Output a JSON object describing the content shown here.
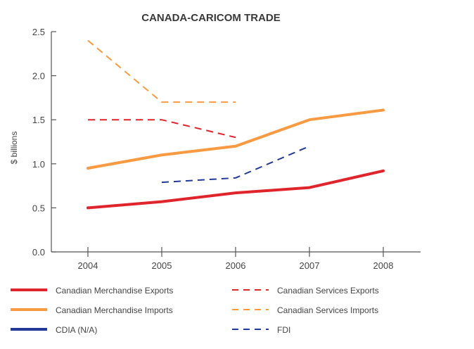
{
  "chart_data": {
    "type": "line",
    "title": "CANADA-CARICOM TRADE",
    "xlabel": "",
    "ylabel": "$ billions",
    "x": [
      "2004",
      "2005",
      "2006",
      "2007",
      "2008"
    ],
    "yticks": [
      "0.0",
      "0.5",
      "1.0",
      "1.5",
      "2.0",
      "2.5"
    ],
    "ylim": [
      0,
      2.5
    ],
    "grid": false,
    "legend_position": "bottom",
    "series": [
      {
        "name": "Canadian Merchandise Exports",
        "color": "#e0242b",
        "style": "solid",
        "values": [
          0.5,
          0.57,
          0.67,
          0.73,
          0.92
        ]
      },
      {
        "name": "Canadian Merchandise Imports",
        "color": "#f79a42",
        "style": "solid",
        "values": [
          0.95,
          1.1,
          1.2,
          1.5,
          1.61
        ]
      },
      {
        "name": "CDIA (N/A)",
        "color": "#23399a",
        "style": "solid",
        "values": [
          null,
          null,
          null,
          null,
          null
        ]
      },
      {
        "name": "Canadian Services Exports",
        "color": "#e0242b",
        "style": "dashed",
        "values": [
          1.5,
          1.5,
          1.3,
          null,
          null
        ]
      },
      {
        "name": "Canadian Services Imports",
        "color": "#f79a42",
        "style": "dashed",
        "values": [
          2.4,
          1.7,
          1.7,
          null,
          null
        ]
      },
      {
        "name": "FDI",
        "color": "#23399a",
        "style": "dashed",
        "values": [
          null,
          0.79,
          0.84,
          1.2,
          null
        ]
      }
    ]
  }
}
